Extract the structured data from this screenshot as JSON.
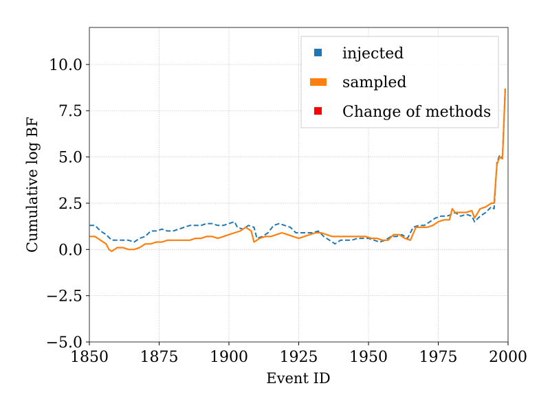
{
  "chart_data": {
    "type": "line",
    "xlabel": "Event ID",
    "ylabel": "Cumulative log BF",
    "xlim": [
      1850,
      2000
    ],
    "ylim": [
      -5.0,
      12.0
    ],
    "xticks": [
      1850,
      1875,
      1900,
      1925,
      1950,
      1975,
      2000
    ],
    "yticks": [
      -5.0,
      -2.5,
      0.0,
      2.5,
      5.0,
      7.5,
      10.0
    ],
    "xtick_labels": [
      "1850",
      "1875",
      "1900",
      "1925",
      "1950",
      "1975",
      "2000"
    ],
    "ytick_labels": [
      "−5.0",
      "−2.5",
      "0.0",
      "2.5",
      "5.0",
      "7.5",
      "10.0"
    ],
    "grid": true,
    "legend_position": "top-right",
    "legend": [
      {
        "label": "injected",
        "color": "#1f77b4",
        "marker": "square"
      },
      {
        "label": "sampled",
        "color": "#ff7f0e",
        "marker": "bar"
      },
      {
        "label": "Change of methods",
        "color": "#ff0000",
        "marker": "square"
      }
    ],
    "series": [
      {
        "name": "injected",
        "color": "#1f77b4",
        "style": "dashed",
        "x": [
          1850,
          1852,
          1854,
          1856,
          1858,
          1860,
          1862,
          1864,
          1866,
          1868,
          1870,
          1872,
          1874,
          1876,
          1878,
          1880,
          1882,
          1884,
          1886,
          1888,
          1890,
          1892,
          1894,
          1896,
          1898,
          1900,
          1902,
          1903,
          1905,
          1907,
          1909,
          1910,
          1912,
          1914,
          1916,
          1918,
          1920,
          1922,
          1924,
          1926,
          1928,
          1930,
          1932,
          1934,
          1936,
          1938,
          1940,
          1942,
          1944,
          1946,
          1948,
          1950,
          1952,
          1954,
          1956,
          1958,
          1960,
          1962,
          1964,
          1966,
          1968,
          1970,
          1972,
          1974,
          1976,
          1978,
          1980,
          1981,
          1983,
          1985,
          1987,
          1988,
          1990,
          1992,
          1994,
          1995,
          1996,
          1997,
          1998,
          1999
        ],
        "values": [
          1.3,
          1.3,
          1.0,
          0.8,
          0.5,
          0.5,
          0.5,
          0.5,
          0.4,
          0.6,
          0.7,
          1.0,
          1.0,
          1.1,
          1.0,
          1.0,
          1.1,
          1.2,
          1.3,
          1.3,
          1.3,
          1.4,
          1.4,
          1.3,
          1.3,
          1.4,
          1.5,
          1.2,
          1.1,
          1.3,
          1.2,
          0.6,
          0.7,
          0.9,
          1.3,
          1.4,
          1.3,
          1.2,
          0.9,
          0.9,
          0.9,
          0.9,
          1.0,
          0.7,
          0.5,
          0.3,
          0.5,
          0.5,
          0.5,
          0.6,
          0.6,
          0.6,
          0.5,
          0.4,
          0.5,
          0.7,
          0.7,
          0.8,
          0.6,
          1.2,
          1.3,
          1.3,
          1.5,
          1.7,
          1.8,
          1.8,
          1.9,
          2.0,
          1.8,
          1.9,
          1.8,
          1.5,
          1.8,
          2.0,
          2.3,
          2.2,
          4.7,
          5.1,
          5.0,
          8.7
        ]
      },
      {
        "name": "sampled",
        "color": "#ff7f0e",
        "style": "solid",
        "x": [
          1850,
          1852,
          1854,
          1856,
          1857,
          1858,
          1860,
          1862,
          1864,
          1866,
          1868,
          1870,
          1872,
          1874,
          1876,
          1878,
          1880,
          1882,
          1884,
          1886,
          1888,
          1890,
          1892,
          1894,
          1896,
          1898,
          1900,
          1902,
          1904,
          1906,
          1908,
          1909,
          1911,
          1913,
          1915,
          1917,
          1919,
          1921,
          1923,
          1925,
          1927,
          1929,
          1931,
          1933,
          1935,
          1937,
          1939,
          1941,
          1943,
          1945,
          1947,
          1949,
          1951,
          1953,
          1955,
          1957,
          1959,
          1961,
          1963,
          1965,
          1967,
          1969,
          1971,
          1973,
          1975,
          1977,
          1979,
          1980,
          1981,
          1983,
          1985,
          1987,
          1988,
          1990,
          1992,
          1994,
          1995,
          1996,
          1997,
          1998,
          1999
        ],
        "values": [
          0.7,
          0.7,
          0.5,
          0.3,
          0.0,
          -0.1,
          0.1,
          0.1,
          0.0,
          0.0,
          0.1,
          0.3,
          0.3,
          0.4,
          0.4,
          0.5,
          0.5,
          0.5,
          0.5,
          0.5,
          0.6,
          0.6,
          0.7,
          0.7,
          0.6,
          0.7,
          0.8,
          0.9,
          1.0,
          1.2,
          1.0,
          0.4,
          0.6,
          0.7,
          0.7,
          0.8,
          0.9,
          0.8,
          0.7,
          0.6,
          0.7,
          0.8,
          0.9,
          0.9,
          0.8,
          0.7,
          0.7,
          0.7,
          0.7,
          0.7,
          0.7,
          0.7,
          0.6,
          0.6,
          0.5,
          0.5,
          0.8,
          0.8,
          0.6,
          0.5,
          1.2,
          1.2,
          1.2,
          1.3,
          1.5,
          1.6,
          1.6,
          2.2,
          2.0,
          2.0,
          2.0,
          2.1,
          1.7,
          2.2,
          2.3,
          2.5,
          2.5,
          4.6,
          5.0,
          4.9,
          8.7
        ]
      }
    ]
  }
}
